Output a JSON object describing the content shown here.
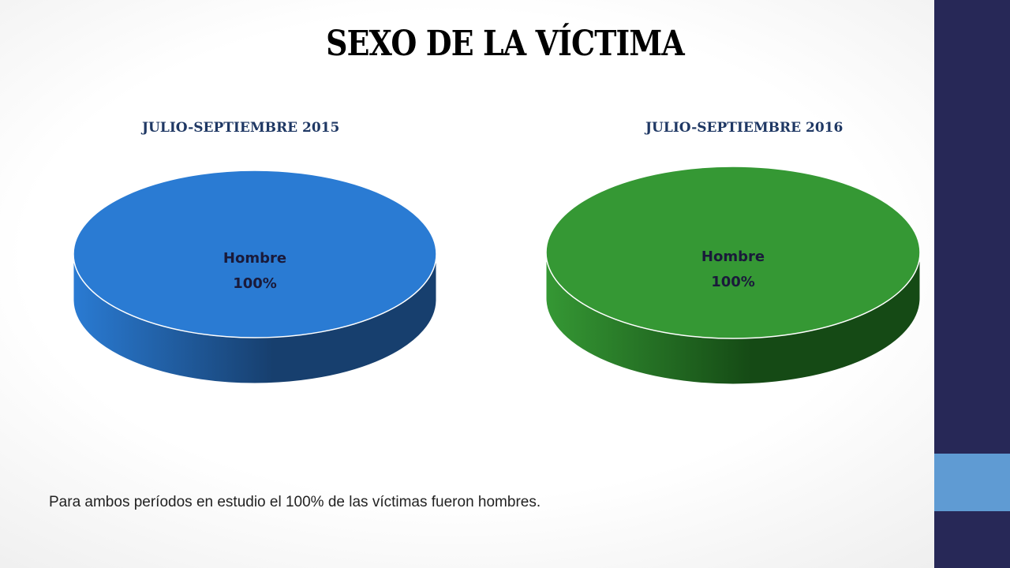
{
  "slide": {
    "title": "SEXO DE LA VÍCTIMA",
    "caption": "Para ambos períodos en estudio el 100% de las víctimas fueron hombres.",
    "sidebar_color": "#272857",
    "sidebar_accent_color": "#5f9bd3"
  },
  "chart_data": [
    {
      "type": "pie",
      "title": "JULIO-SEPTIEMBRE 2015",
      "labels": [
        "Hombre"
      ],
      "values": [
        100
      ],
      "value_labels": [
        "100%"
      ],
      "colors": [
        "#2a7bd3"
      ],
      "side_color_dark": "#173f6e",
      "style": "3d"
    },
    {
      "type": "pie",
      "title": "JULIO-SEPTIEMBRE 2016",
      "labels": [
        "Hombre"
      ],
      "values": [
        100
      ],
      "value_labels": [
        "100%"
      ],
      "colors": [
        "#359834"
      ],
      "side_color_dark": "#154a15",
      "style": "3d"
    }
  ]
}
